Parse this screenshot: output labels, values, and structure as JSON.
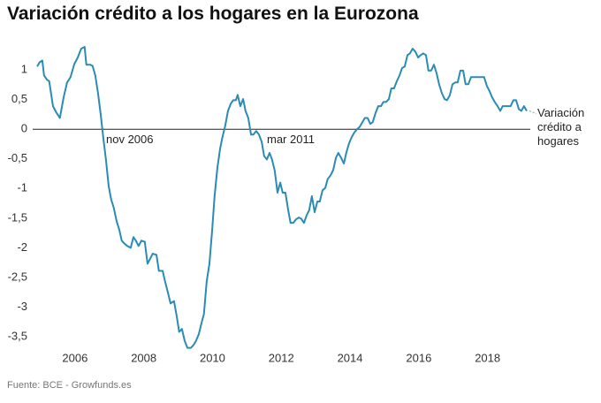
{
  "chart_data": {
    "type": "line",
    "title": "Variación crédito a los hogares en la Eurozona",
    "source": "Fuente: BCE - Growfunds.es",
    "annotations": [
      "nov 2006",
      "mar 2011"
    ],
    "xlim": [
      2004.77,
      2019.14
    ],
    "ylim": [
      -3.8,
      1.6
    ],
    "xticks": [
      2006,
      2008,
      2010,
      2012,
      2014,
      2016,
      2018
    ],
    "yticks": [
      1,
      {
        "value": 0.5,
        "label": "0,5"
      },
      0,
      {
        "value": -0.5,
        "label": "-0,5"
      },
      -1,
      {
        "value": -1.5,
        "label": "-1,5"
      },
      -2,
      {
        "value": -2.5,
        "label": "-2,5"
      },
      -3,
      {
        "value": -3.5,
        "label": "-3,5"
      }
    ],
    "grid": false,
    "x": [
      2004.9,
      2004.97,
      2005.05,
      2005.1,
      2005.18,
      2005.25,
      2005.36,
      2005.46,
      2005.56,
      2005.67,
      2005.77,
      2005.87,
      2005.98,
      2006.08,
      2006.18,
      2006.28,
      2006.33,
      2006.44,
      2006.51,
      2006.59,
      2006.67,
      2006.75,
      2006.82,
      2006.9,
      2006.98,
      2007.05,
      2007.13,
      2007.21,
      2007.29,
      2007.36,
      2007.44,
      2007.52,
      2007.62,
      2007.7,
      2007.77,
      2007.85,
      2007.93,
      2008.03,
      2008.11,
      2008.19,
      2008.26,
      2008.37,
      2008.44,
      2008.55,
      2008.62,
      2008.7,
      2008.78,
      2008.88,
      2008.96,
      2009.03,
      2009.11,
      2009.19,
      2009.27,
      2009.37,
      2009.45,
      2009.52,
      2009.6,
      2009.68,
      2009.75,
      2009.83,
      2009.91,
      2009.99,
      2010.06,
      2010.14,
      2010.22,
      2010.29,
      2010.37,
      2010.45,
      2010.53,
      2010.6,
      2010.68,
      2010.73,
      2010.81,
      2010.89,
      2010.96,
      2011.04,
      2011.12,
      2011.19,
      2011.27,
      2011.35,
      2011.43,
      2011.5,
      2011.58,
      2011.66,
      2011.73,
      2011.81,
      2011.89,
      2011.97,
      2012.04,
      2012.12,
      2012.2,
      2012.27,
      2012.35,
      2012.43,
      2012.51,
      2012.58,
      2012.66,
      2012.74,
      2012.81,
      2012.89,
      2012.97,
      2013.05,
      2013.12,
      2013.2,
      2013.28,
      2013.35,
      2013.43,
      2013.51,
      2013.59,
      2013.66,
      2013.74,
      2013.82,
      2013.89,
      2013.97,
      2014.05,
      2014.12,
      2014.2,
      2014.28,
      2014.36,
      2014.43,
      2014.51,
      2014.59,
      2014.66,
      2014.74,
      2014.82,
      2014.9,
      2014.97,
      2015.05,
      2015.13,
      2015.2,
      2015.28,
      2015.36,
      2015.44,
      2015.51,
      2015.59,
      2015.67,
      2015.74,
      2015.82,
      2015.9,
      2015.98,
      2016.05,
      2016.13,
      2016.21,
      2016.28,
      2016.36,
      2016.44,
      2016.52,
      2016.59,
      2016.67,
      2016.75,
      2016.82,
      2016.9,
      2016.98,
      2017.06,
      2017.13,
      2017.21,
      2017.29,
      2017.36,
      2017.44,
      2017.52,
      2017.6,
      2017.67,
      2017.75,
      2017.83,
      2017.9,
      2017.98,
      2018.06,
      2018.13,
      2018.21,
      2018.29,
      2018.37,
      2018.44,
      2018.52,
      2018.6,
      2018.67,
      2018.75,
      2018.83,
      2018.91,
      2018.98,
      2019.06,
      2019.14
    ],
    "series": [
      {
        "name": "Variación crédito a hogares",
        "color": "#2a8bb5",
        "values": [
          1.06,
          1.13,
          1.16,
          0.91,
          0.84,
          0.81,
          0.39,
          0.28,
          0.19,
          0.54,
          0.79,
          0.88,
          1.1,
          1.21,
          1.36,
          1.39,
          1.09,
          1.09,
          1.07,
          0.91,
          0.61,
          0.24,
          -0.13,
          -0.51,
          -0.96,
          -1.18,
          -1.33,
          -1.55,
          -1.7,
          -1.88,
          -1.93,
          -1.97,
          -2.0,
          -1.82,
          -1.88,
          -1.97,
          -1.88,
          -1.9,
          -2.27,
          -2.18,
          -2.1,
          -2.12,
          -2.39,
          -2.39,
          -2.57,
          -2.75,
          -2.94,
          -2.9,
          -3.16,
          -3.42,
          -3.37,
          -3.57,
          -3.69,
          -3.69,
          -3.64,
          -3.57,
          -3.46,
          -3.27,
          -3.12,
          -2.57,
          -2.27,
          -1.7,
          -1.13,
          -0.66,
          -0.33,
          -0.13,
          0.06,
          0.31,
          0.43,
          0.49,
          0.49,
          0.58,
          0.39,
          0.51,
          0.31,
          0.19,
          -0.09,
          -0.09,
          -0.03,
          -0.09,
          -0.21,
          -0.45,
          -0.51,
          -0.4,
          -0.51,
          -0.7,
          -1.07,
          -0.9,
          -1.07,
          -1.07,
          -1.36,
          -1.58,
          -1.58,
          -1.52,
          -1.49,
          -1.51,
          -1.58,
          -1.45,
          -1.37,
          -1.13,
          -1.4,
          -1.22,
          -1.22,
          -1.03,
          -0.99,
          -0.84,
          -0.78,
          -0.69,
          -0.48,
          -0.4,
          -0.48,
          -0.58,
          -0.4,
          -0.24,
          -0.13,
          -0.06,
          0.0,
          0.04,
          0.12,
          0.19,
          0.19,
          0.09,
          0.12,
          0.27,
          0.39,
          0.39,
          0.46,
          0.46,
          0.51,
          0.69,
          0.69,
          0.81,
          0.91,
          1.03,
          1.06,
          1.25,
          1.28,
          1.36,
          1.31,
          1.21,
          1.25,
          1.28,
          1.25,
          0.99,
          0.99,
          1.09,
          0.94,
          0.76,
          0.61,
          0.51,
          0.49,
          0.57,
          0.76,
          0.79,
          0.79,
          0.99,
          0.99,
          0.76,
          0.76,
          0.88,
          0.88,
          0.88,
          0.88,
          0.88,
          0.88,
          0.73,
          0.64,
          0.54,
          0.46,
          0.39,
          0.31,
          0.39,
          0.39,
          0.39,
          0.39,
          0.49,
          0.49,
          0.34,
          0.31,
          0.39,
          0.31
        ]
      }
    ]
  }
}
